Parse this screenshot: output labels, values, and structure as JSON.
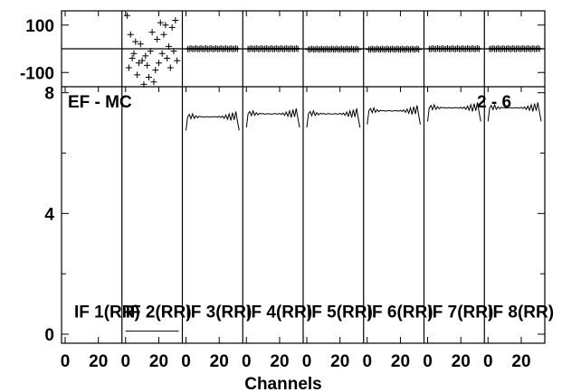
{
  "chart_data": {
    "type": "line",
    "annotation_left": "EF - MC",
    "annotation_right": "2 - 6",
    "xlabel": "Channels",
    "x_ticks": [
      "0",
      "20"
    ],
    "panel_count": 8,
    "x_range": [
      0,
      32
    ],
    "phase_panel": {
      "ylim": [
        -160,
        160
      ],
      "y_ticks": [
        "100",
        "-100"
      ],
      "ref_line": 0
    },
    "amp_panel": {
      "ylim": [
        -0.3,
        8.2
      ],
      "y_ticks": [
        "8",
        "4",
        "0"
      ]
    },
    "if_labels": [
      "IF 1(RR)",
      "IF 2(RR)",
      "IF 3(RR)",
      "IF 4(RR)",
      "IF 5(RR)",
      "IF 6(RR)",
      "IF 7(RR)",
      "IF 8(RR)"
    ],
    "series": [
      {
        "if": 1,
        "amplitude": [],
        "phase": []
      },
      {
        "if": 2,
        "amplitude_level": 0.1,
        "phase": [
          [
            1,
            140
          ],
          [
            2,
            -80
          ],
          [
            3,
            60
          ],
          [
            4,
            -40
          ],
          [
            5,
            -20
          ],
          [
            6,
            30
          ],
          [
            7,
            -110
          ],
          [
            8,
            -60
          ],
          [
            9,
            20
          ],
          [
            10,
            -50
          ],
          [
            11,
            -150
          ],
          [
            12,
            -30
          ],
          [
            13,
            -70
          ],
          [
            14,
            -120
          ],
          [
            15,
            -10
          ],
          [
            16,
            70
          ],
          [
            17,
            -140
          ],
          [
            18,
            -90
          ],
          [
            19,
            40
          ],
          [
            20,
            -60
          ],
          [
            21,
            110
          ],
          [
            22,
            -20
          ],
          [
            23,
            60
          ],
          [
            24,
            100
          ],
          [
            25,
            -40
          ],
          [
            26,
            10
          ],
          [
            27,
            -80
          ],
          [
            28,
            90
          ],
          [
            29,
            -10
          ],
          [
            30,
            120
          ],
          [
            31,
            -50
          ]
        ]
      },
      {
        "if": 3,
        "amplitude_level": 7.2,
        "phase_level": 0
      },
      {
        "if": 4,
        "amplitude_level": 7.3,
        "phase_level": 0
      },
      {
        "if": 5,
        "amplitude_level": 7.3,
        "phase_level": -2
      },
      {
        "if": 6,
        "amplitude_level": 7.4,
        "phase_level": -2
      },
      {
        "if": 7,
        "amplitude_level": 7.5,
        "phase_level": 0
      },
      {
        "if": 8,
        "amplitude_level": 7.5,
        "phase_level": 0
      }
    ]
  }
}
